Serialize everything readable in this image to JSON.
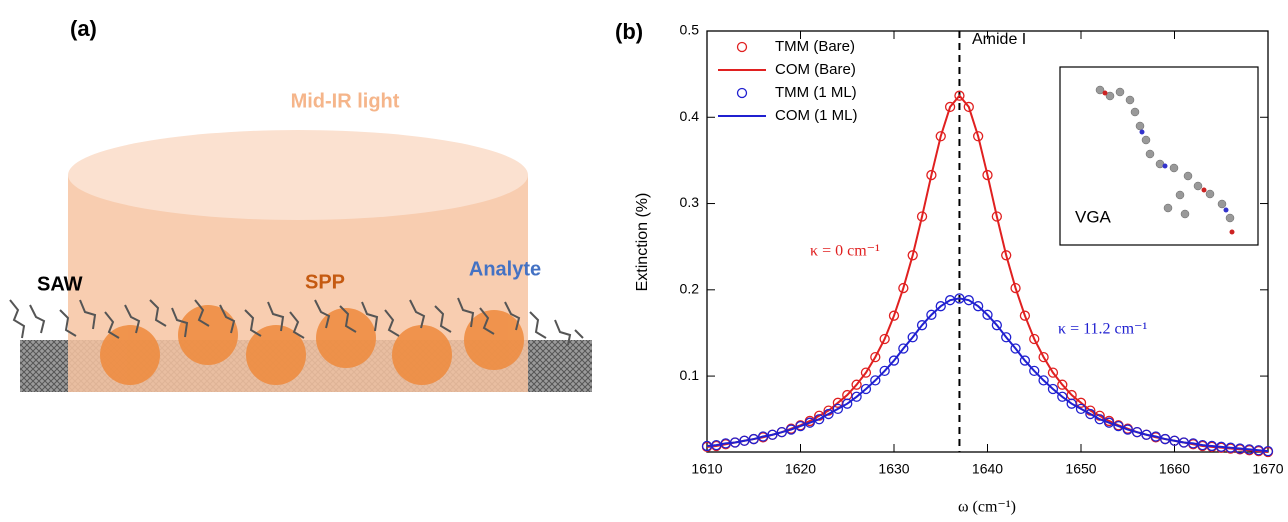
{
  "panel_a": {
    "label": "(a)",
    "light": "Mid-IR light",
    "saw": "SAW",
    "spp": "SPP",
    "analyte": "Analyte"
  },
  "chart_data": {
    "type": "line",
    "panel_label": "(b)",
    "x_label": "ω (cm⁻¹)",
    "y_label": "Extinction (%)",
    "x": [
      1610,
      1611,
      1612,
      1613,
      1614,
      1615,
      1616,
      1617,
      1618,
      1619,
      1620,
      1621,
      1622,
      1623,
      1624,
      1625,
      1626,
      1627,
      1628,
      1629,
      1630,
      1631,
      1632,
      1633,
      1634,
      1635,
      1636,
      1637,
      1638,
      1639,
      1640,
      1641,
      1642,
      1643,
      1644,
      1645,
      1646,
      1647,
      1648,
      1649,
      1650,
      1651,
      1652,
      1653,
      1654,
      1655,
      1656,
      1657,
      1658,
      1659,
      1660,
      1661,
      1662,
      1663,
      1664,
      1665,
      1666,
      1667,
      1668,
      1669,
      1670
    ],
    "series": [
      {
        "name": "TMM (Bare)",
        "color": "#e02020",
        "style": "marker",
        "values": [
          0.018,
          0.019,
          0.021,
          0.023,
          0.025,
          0.027,
          0.029,
          0.032,
          0.035,
          0.039,
          0.043,
          0.048,
          0.054,
          0.06,
          0.069,
          0.078,
          0.09,
          0.104,
          0.122,
          0.143,
          0.17,
          0.202,
          0.24,
          0.285,
          0.333,
          0.378,
          0.412,
          0.425,
          0.412,
          0.378,
          0.333,
          0.285,
          0.24,
          0.202,
          0.17,
          0.143,
          0.122,
          0.104,
          0.09,
          0.078,
          0.069,
          0.06,
          0.054,
          0.048,
          0.043,
          0.039,
          0.035,
          0.032,
          0.029,
          0.027,
          0.025,
          0.023,
          0.021,
          0.019,
          0.018,
          0.017,
          0.016,
          0.015,
          0.014,
          0.013,
          0.012
        ]
      },
      {
        "name": "COM (Bare)",
        "color": "#e02020",
        "style": "line",
        "values": [
          0.018,
          0.019,
          0.021,
          0.023,
          0.025,
          0.027,
          0.029,
          0.032,
          0.035,
          0.039,
          0.043,
          0.048,
          0.054,
          0.06,
          0.069,
          0.078,
          0.09,
          0.104,
          0.122,
          0.143,
          0.17,
          0.202,
          0.24,
          0.285,
          0.333,
          0.378,
          0.412,
          0.425,
          0.412,
          0.378,
          0.333,
          0.285,
          0.24,
          0.202,
          0.17,
          0.143,
          0.122,
          0.104,
          0.09,
          0.078,
          0.069,
          0.06,
          0.054,
          0.048,
          0.043,
          0.039,
          0.035,
          0.032,
          0.029,
          0.027,
          0.025,
          0.023,
          0.021,
          0.019,
          0.018,
          0.017,
          0.016,
          0.015,
          0.014,
          0.013,
          0.012
        ]
      },
      {
        "name": "TMM (1 ML)",
        "color": "#2020d0",
        "style": "marker",
        "values": [
          0.019,
          0.02,
          0.022,
          0.023,
          0.025,
          0.027,
          0.03,
          0.032,
          0.035,
          0.038,
          0.042,
          0.046,
          0.05,
          0.056,
          0.062,
          0.068,
          0.076,
          0.085,
          0.095,
          0.106,
          0.118,
          0.132,
          0.145,
          0.159,
          0.171,
          0.181,
          0.188,
          0.19,
          0.188,
          0.181,
          0.171,
          0.159,
          0.145,
          0.132,
          0.118,
          0.106,
          0.095,
          0.085,
          0.076,
          0.068,
          0.062,
          0.056,
          0.05,
          0.046,
          0.042,
          0.038,
          0.035,
          0.032,
          0.03,
          0.027,
          0.025,
          0.023,
          0.022,
          0.02,
          0.019,
          0.018,
          0.017,
          0.016,
          0.015,
          0.014,
          0.013
        ]
      },
      {
        "name": "COM (1 ML)",
        "color": "#2020d0",
        "style": "line",
        "values": [
          0.019,
          0.02,
          0.022,
          0.023,
          0.025,
          0.027,
          0.03,
          0.032,
          0.035,
          0.038,
          0.042,
          0.046,
          0.05,
          0.056,
          0.062,
          0.068,
          0.076,
          0.085,
          0.095,
          0.106,
          0.118,
          0.132,
          0.145,
          0.159,
          0.171,
          0.181,
          0.188,
          0.19,
          0.188,
          0.181,
          0.171,
          0.159,
          0.145,
          0.132,
          0.118,
          0.106,
          0.095,
          0.085,
          0.076,
          0.068,
          0.062,
          0.056,
          0.05,
          0.046,
          0.042,
          0.038,
          0.035,
          0.032,
          0.03,
          0.027,
          0.025,
          0.023,
          0.022,
          0.02,
          0.019,
          0.018,
          0.017,
          0.016,
          0.015,
          0.014,
          0.013
        ]
      }
    ],
    "xlim": [
      1610,
      1670
    ],
    "xticks": [
      1610,
      1620,
      1630,
      1640,
      1650,
      1660,
      1670
    ],
    "ylim": [
      0.012,
      0.5
    ],
    "yticks": [
      0.1,
      0.2,
      0.3,
      0.4,
      0.5
    ],
    "vline": 1637,
    "annotations": [
      {
        "text": "Amide I"
      },
      {
        "text": "κ = 0 cm⁻¹",
        "color": "#e02020"
      },
      {
        "text": "κ = 11.2 cm⁻¹",
        "color": "#2020d0"
      }
    ],
    "inset_label": "VGA",
    "legend": "upper left"
  }
}
